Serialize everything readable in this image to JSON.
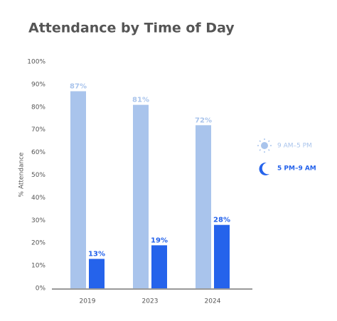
{
  "chart_data": {
    "type": "bar",
    "title": "Attendance by Time of Day",
    "ylabel": "% Attendance",
    "categories": [
      "2019",
      "2023",
      "2024"
    ],
    "series": [
      {
        "name": "9 AM–5 PM",
        "color": "#a9c4ec",
        "values": [
          87,
          81,
          72
        ],
        "value_labels": [
          "87%",
          "81%",
          "72%"
        ]
      },
      {
        "name": "5 PM–9 AM",
        "color": "#2563eb",
        "values": [
          13,
          19,
          28
        ],
        "value_labels": [
          "13%",
          "19%",
          "28%"
        ]
      }
    ],
    "ylim": [
      0,
      100
    ],
    "yticks": [
      {
        "value": 0,
        "label": "0%"
      },
      {
        "value": 10,
        "label": "10%"
      },
      {
        "value": 20,
        "label": "20%"
      },
      {
        "value": 30,
        "label": "30%"
      },
      {
        "value": 40,
        "label": "40%"
      },
      {
        "value": 50,
        "label": "50%"
      },
      {
        "value": 60,
        "label": "60%"
      },
      {
        "value": 70,
        "label": "70%"
      },
      {
        "value": 80,
        "label": "80%"
      },
      {
        "value": 90,
        "label": "90%"
      },
      {
        "value": 100,
        "label": "100%"
      }
    ],
    "grid": false,
    "legend": "right"
  }
}
